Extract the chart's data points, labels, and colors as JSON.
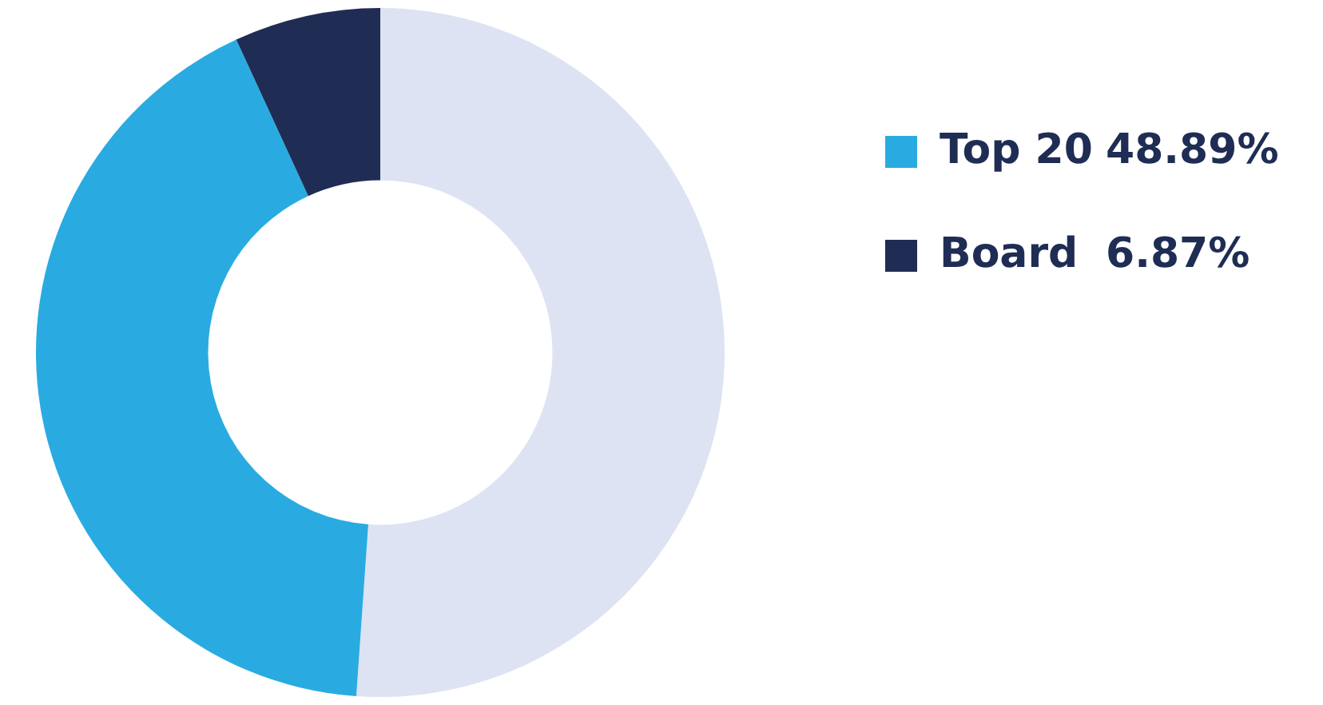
{
  "chart_data": {
    "type": "donut",
    "categories": [
      null,
      "Top 20",
      "Board"
    ],
    "values": [
      51.11,
      42.02,
      6.87
    ],
    "colors": [
      "#dde3f3",
      "#29abe2",
      "#1f2d55"
    ],
    "legend": "right",
    "annotations": [
      "48.89%",
      "6.87%"
    ]
  }
}
